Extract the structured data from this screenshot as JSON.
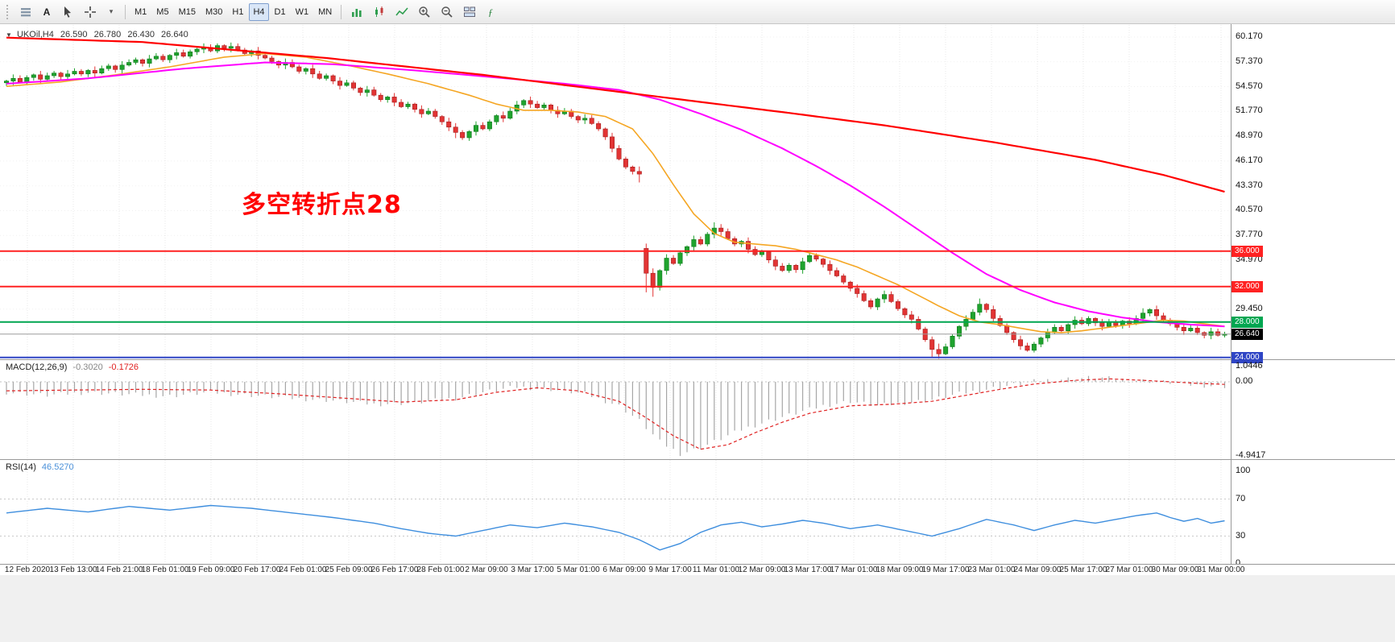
{
  "toolbar": {
    "text_tool_label": "A",
    "timeframes": [
      {
        "label": "M1",
        "active": false
      },
      {
        "label": "M5",
        "active": false
      },
      {
        "label": "M15",
        "active": false
      },
      {
        "label": "M30",
        "active": false
      },
      {
        "label": "H1",
        "active": false
      },
      {
        "label": "H4",
        "active": true
      },
      {
        "label": "D1",
        "active": false
      },
      {
        "label": "W1",
        "active": false
      },
      {
        "label": "MN",
        "active": false
      }
    ]
  },
  "chart": {
    "collapse_arrow": "▼",
    "symbol": "UKOil,H4",
    "ohlc": {
      "open": "26.590",
      "high": "26.780",
      "low": "26.430",
      "close": "26.640"
    },
    "annotation": {
      "text": "多空转折点28",
      "color": "#ff0000"
    },
    "colors": {
      "up": "#1fa32e",
      "up_stroke": "#0f7a1c",
      "down": "#e23434",
      "down_stroke": "#a31f1f",
      "ma_fast": "#f5a623",
      "ma_mid": "#ff00ff",
      "ma_slow": "#ff0000"
    },
    "price_axis": {
      "top_price": 61.53,
      "bottom_price": 23.79,
      "ticks": [
        "60.170",
        "57.370",
        "54.570",
        "51.770",
        "48.970",
        "46.170",
        "43.370",
        "40.570",
        "37.770",
        "34.970",
        "29.450"
      ]
    },
    "hlines": [
      {
        "price": 36.0,
        "label": "36.000",
        "color": "#ff2222"
      },
      {
        "price": 32.0,
        "label": "32.000",
        "color": "#ff2222"
      },
      {
        "price": 28.0,
        "label": "28.000",
        "color": "#00a651"
      },
      {
        "price": 24.0,
        "label": "24.000",
        "color": "#2f45c5"
      }
    ],
    "current_price": {
      "price": 26.64,
      "label": "26.640",
      "line_color": "#9c9c9c",
      "badge_color": "#000000"
    },
    "first_open": 55.0,
    "gap_opens": {
      "94": 36.3
    },
    "spikes": {
      "66": [
        0.1,
        0.5
      ],
      "75": [
        0.2,
        0.1
      ],
      "93": [
        0.1,
        0.5
      ],
      "94": [
        0.2,
        2.0
      ],
      "95": [
        0.3,
        0.8
      ],
      "104": [
        0.5,
        0.1
      ],
      "136": [
        0.2,
        0.6
      ],
      "137": [
        0.2,
        0.1
      ],
      "143": [
        0.4,
        0.1
      ],
      "167": [
        0.3,
        0.1
      ]
    },
    "closes": [
      55.2,
      55.5,
      55.1,
      55.6,
      55.9,
      55.4,
      55.8,
      56.1,
      55.7,
      56.0,
      56.3,
      56.0,
      56.4,
      56.1,
      56.6,
      56.9,
      56.5,
      57.0,
      57.3,
      57.6,
      57.2,
      57.7,
      58.0,
      57.6,
      58.1,
      58.4,
      58.0,
      58.5,
      58.8,
      59.0,
      58.6,
      59.2,
      58.9,
      59.1,
      58.7,
      58.3,
      58.6,
      58.1,
      57.8,
      57.4,
      57.0,
      57.3,
      56.8,
      56.3,
      56.6,
      56.0,
      55.5,
      55.8,
      55.2,
      54.7,
      55.0,
      54.4,
      53.9,
      54.2,
      53.6,
      53.1,
      53.4,
      52.8,
      52.3,
      52.6,
      52.0,
      51.5,
      51.8,
      51.2,
      50.6,
      50.0,
      49.4,
      48.8,
      49.5,
      50.2,
      49.8,
      50.6,
      51.3,
      51.0,
      51.8,
      52.5,
      53.0,
      52.6,
      52.2,
      52.5,
      51.9,
      51.5,
      51.8,
      51.2,
      50.8,
      51.0,
      50.4,
      49.8,
      48.9,
      47.6,
      46.4,
      45.5,
      45.0,
      44.7,
      33.5,
      31.9,
      33.8,
      35.2,
      34.6,
      35.8,
      36.5,
      37.3,
      36.8,
      37.9,
      38.6,
      38.2,
      37.4,
      36.8,
      37.1,
      36.2,
      35.6,
      35.9,
      35.0,
      34.3,
      33.8,
      34.4,
      33.9,
      34.8,
      35.5,
      35.1,
      34.5,
      33.8,
      33.2,
      32.5,
      31.8,
      31.2,
      30.4,
      29.7,
      30.6,
      31.1,
      30.3,
      29.5,
      28.8,
      28.3,
      27.2,
      26.0,
      24.9,
      24.4,
      25.2,
      26.4,
      27.5,
      28.3,
      29.1,
      30.0,
      29.4,
      28.4,
      27.6,
      26.8,
      26.0,
      25.3,
      24.8,
      25.5,
      26.2,
      26.8,
      27.4,
      27.0,
      27.7,
      28.2,
      27.8,
      28.4,
      27.9,
      27.5,
      28.0,
      27.6,
      28.1,
      27.8,
      28.4,
      29.0,
      29.4,
      28.7,
      28.2,
      27.8,
      27.4,
      27.0,
      27.3,
      26.8,
      26.5,
      26.9,
      26.5,
      26.64
    ],
    "ma_slow_points": [
      [
        0,
        60.1
      ],
      [
        20,
        59.6
      ],
      [
        47,
        57.8
      ],
      [
        70,
        55.9
      ],
      [
        94,
        53.6
      ],
      [
        115,
        51.6
      ],
      [
        129,
        50.2
      ],
      [
        145,
        48.3
      ],
      [
        160,
        46.3
      ],
      [
        170,
        44.6
      ],
      [
        179,
        42.7
      ]
    ],
    "ma_mid_points": [
      [
        0,
        54.9
      ],
      [
        12,
        55.5
      ],
      [
        26,
        56.6
      ],
      [
        38,
        57.3
      ],
      [
        48,
        57.1
      ],
      [
        60,
        56.4
      ],
      [
        72,
        55.6
      ],
      [
        82,
        54.9
      ],
      [
        90,
        54.2
      ],
      [
        96,
        53.1
      ],
      [
        102,
        51.5
      ],
      [
        108,
        49.7
      ],
      [
        114,
        47.6
      ],
      [
        119,
        45.6
      ],
      [
        124,
        43.4
      ],
      [
        129,
        41.0
      ],
      [
        134,
        38.4
      ],
      [
        139,
        35.8
      ],
      [
        144,
        33.4
      ],
      [
        149,
        31.6
      ],
      [
        154,
        30.2
      ],
      [
        159,
        29.2
      ],
      [
        164,
        28.5
      ],
      [
        169,
        28.0
      ],
      [
        174,
        27.7
      ],
      [
        179,
        27.5
      ]
    ],
    "ma_fast_points": [
      [
        0,
        54.6
      ],
      [
        8,
        55.1
      ],
      [
        16,
        55.9
      ],
      [
        24,
        56.8
      ],
      [
        32,
        57.9
      ],
      [
        38,
        58.3
      ],
      [
        44,
        57.9
      ],
      [
        50,
        57.0
      ],
      [
        56,
        56.0
      ],
      [
        62,
        54.9
      ],
      [
        68,
        53.6
      ],
      [
        72,
        52.6
      ],
      [
        76,
        51.9
      ],
      [
        80,
        51.9
      ],
      [
        84,
        51.7
      ],
      [
        88,
        51.2
      ],
      [
        92,
        49.8
      ],
      [
        95,
        47.0
      ],
      [
        98,
        43.5
      ],
      [
        101,
        40.2
      ],
      [
        104,
        38.0
      ],
      [
        107,
        37.0
      ],
      [
        110,
        36.8
      ],
      [
        113,
        36.6
      ],
      [
        116,
        36.2
      ],
      [
        119,
        35.6
      ],
      [
        122,
        35.0
      ],
      [
        125,
        34.2
      ],
      [
        128,
        33.2
      ],
      [
        131,
        32.2
      ],
      [
        134,
        31.0
      ],
      [
        137,
        29.8
      ],
      [
        140,
        28.7
      ],
      [
        143,
        28.0
      ],
      [
        146,
        27.7
      ],
      [
        149,
        27.3
      ],
      [
        152,
        26.9
      ],
      [
        155,
        26.8
      ],
      [
        158,
        27.0
      ],
      [
        161,
        27.3
      ],
      [
        164,
        27.6
      ],
      [
        167,
        27.9
      ],
      [
        170,
        28.2
      ],
      [
        173,
        28.1
      ],
      [
        176,
        27.8
      ],
      [
        179,
        27.5
      ]
    ]
  },
  "macd": {
    "label": "MACD(12,26,9)",
    "value_main": "-0.3020",
    "value_signal": "-0.1726",
    "axis_ticks": [
      {
        "label": "1.0446",
        "value": 1.0446
      },
      {
        "label": "0.00",
        "value": 0
      },
      {
        "label": "-4.9417",
        "value": -4.9417
      }
    ],
    "colors": {
      "hist": "#a6a6a6",
      "signal": "#e02020"
    },
    "hist_points": [
      [
        0,
        -0.7
      ],
      [
        6,
        -0.9
      ],
      [
        12,
        -0.7
      ],
      [
        18,
        -0.85
      ],
      [
        24,
        -0.95
      ],
      [
        30,
        -0.7
      ],
      [
        36,
        -0.9
      ],
      [
        42,
        -1.1
      ],
      [
        48,
        -1.25
      ],
      [
        54,
        -1.5
      ],
      [
        60,
        -1.4
      ],
      [
        66,
        -1.1
      ],
      [
        70,
        -0.7
      ],
      [
        75,
        -0.35
      ],
      [
        80,
        -0.5
      ],
      [
        85,
        -0.8
      ],
      [
        90,
        -1.6
      ],
      [
        93,
        -2.6
      ],
      [
        96,
        -4.0
      ],
      [
        99,
        -4.8
      ],
      [
        102,
        -4.4
      ],
      [
        105,
        -3.8
      ],
      [
        108,
        -3.2
      ],
      [
        112,
        -2.6
      ],
      [
        116,
        -2.1
      ],
      [
        120,
        -1.6
      ],
      [
        124,
        -1.3
      ],
      [
        128,
        -1.6
      ],
      [
        132,
        -1.4
      ],
      [
        136,
        -1.2
      ],
      [
        140,
        -0.8
      ],
      [
        144,
        -0.5
      ],
      [
        148,
        -0.2
      ],
      [
        152,
        0.1
      ],
      [
        156,
        0.2
      ],
      [
        160,
        0.3
      ],
      [
        164,
        0.15
      ],
      [
        168,
        0.05
      ],
      [
        171,
        -0.05
      ],
      [
        174,
        -0.2
      ],
      [
        179,
        -0.3
      ]
    ],
    "signal_points": [
      [
        0,
        -0.6
      ],
      [
        10,
        -0.55
      ],
      [
        20,
        -0.5
      ],
      [
        30,
        -0.55
      ],
      [
        40,
        -0.8
      ],
      [
        50,
        -1.1
      ],
      [
        58,
        -1.35
      ],
      [
        66,
        -1.2
      ],
      [
        72,
        -0.7
      ],
      [
        78,
        -0.4
      ],
      [
        84,
        -0.6
      ],
      [
        90,
        -1.3
      ],
      [
        94,
        -2.4
      ],
      [
        98,
        -3.6
      ],
      [
        102,
        -4.5
      ],
      [
        106,
        -4.2
      ],
      [
        110,
        -3.4
      ],
      [
        114,
        -2.7
      ],
      [
        118,
        -2.1
      ],
      [
        124,
        -1.6
      ],
      [
        130,
        -1.5
      ],
      [
        136,
        -1.3
      ],
      [
        141,
        -0.9
      ],
      [
        146,
        -0.5
      ],
      [
        151,
        -0.15
      ],
      [
        157,
        0.1
      ],
      [
        162,
        0.2
      ],
      [
        167,
        0.1
      ],
      [
        171,
        0
      ],
      [
        175,
        -0.1
      ],
      [
        179,
        -0.17
      ]
    ]
  },
  "rsi": {
    "label": "RSI(14)",
    "value": "46.5270",
    "color": "#3e8ede",
    "axis_ticks": [
      {
        "label": "100",
        "value": 100
      },
      {
        "label": "70",
        "value": 70
      },
      {
        "label": "30",
        "value": 30
      },
      {
        "label": "0",
        "value": 0
      }
    ],
    "levels": [
      70,
      30
    ],
    "points": [
      [
        0,
        55
      ],
      [
        6,
        60
      ],
      [
        12,
        56
      ],
      [
        18,
        62
      ],
      [
        24,
        58
      ],
      [
        30,
        63
      ],
      [
        36,
        60
      ],
      [
        42,
        55
      ],
      [
        48,
        50
      ],
      [
        54,
        44
      ],
      [
        58,
        38
      ],
      [
        62,
        33
      ],
      [
        66,
        30
      ],
      [
        70,
        36
      ],
      [
        74,
        42
      ],
      [
        78,
        39
      ],
      [
        82,
        44
      ],
      [
        86,
        40
      ],
      [
        90,
        34
      ],
      [
        93,
        26
      ],
      [
        96,
        15
      ],
      [
        99,
        22
      ],
      [
        102,
        34
      ],
      [
        105,
        42
      ],
      [
        108,
        45
      ],
      [
        111,
        40
      ],
      [
        114,
        43
      ],
      [
        117,
        47
      ],
      [
        120,
        44
      ],
      [
        124,
        38
      ],
      [
        128,
        42
      ],
      [
        132,
        36
      ],
      [
        136,
        30
      ],
      [
        140,
        38
      ],
      [
        144,
        48
      ],
      [
        148,
        42
      ],
      [
        151,
        36
      ],
      [
        154,
        42
      ],
      [
        157,
        47
      ],
      [
        160,
        44
      ],
      [
        163,
        48
      ],
      [
        166,
        52
      ],
      [
        169,
        55
      ],
      [
        171,
        50
      ],
      [
        173,
        46
      ],
      [
        175,
        49
      ],
      [
        177,
        44
      ],
      [
        179,
        46.5
      ]
    ]
  },
  "time_axis": [
    "12 Feb 2020",
    "13 Feb 13:00",
    "14 Feb 21:00",
    "18 Feb 01:00",
    "19 Feb 09:00",
    "20 Feb 17:00",
    "24 Feb 01:00",
    "25 Feb 09:00",
    "26 Feb 17:00",
    "28 Feb 01:00",
    "2 Mar 09:00",
    "3 Mar 17:00",
    "5 Mar 01:00",
    "6 Mar 09:00",
    "9 Mar 17:00",
    "11 Mar 01:00",
    "12 Mar 09:00",
    "13 Mar 17:00",
    "17 Mar 01:00",
    "18 Mar 09:00",
    "19 Mar 17:00",
    "23 Mar 01:00",
    "24 Mar 09:00",
    "25 Mar 17:00",
    "27 Mar 01:00",
    "30 Mar 09:00",
    "31 Mar 00:00"
  ]
}
